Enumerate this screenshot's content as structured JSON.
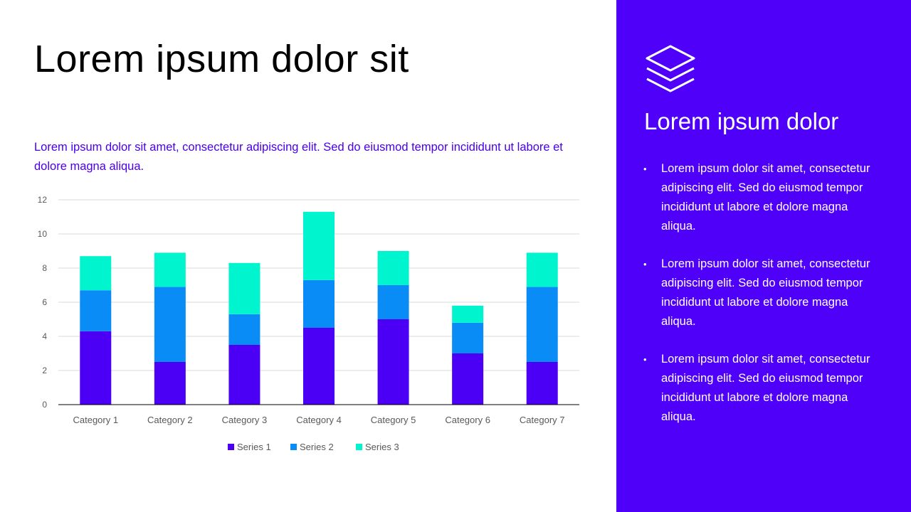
{
  "title": "Lorem ipsum dolor sit",
  "intro": "Lorem ipsum dolor sit amet, consectetur adipiscing elit. Sed do eiusmod tempor incididunt ut labore et dolore magna aliqua.",
  "panel": {
    "icon": "layers-icon",
    "heading": "Lorem ipsum dolor",
    "bullets": [
      "Lorem ipsum dolor sit amet, consectetur adipiscing elit. Sed do eiusmod tempor incididunt ut labore et dolore magna aliqua.",
      "Lorem ipsum dolor sit amet, consectetur adipiscing elit. Sed do eiusmod tempor incididunt ut labore et dolore magna aliqua.",
      "Lorem ipsum dolor sit amet, consectetur adipiscing elit. Sed do eiusmod tempor incididunt ut labore et dolore magna aliqua."
    ],
    "color": "#4f00f8"
  },
  "chart_data": {
    "type": "bar",
    "stacked": true,
    "categories": [
      "Category 1",
      "Category 2",
      "Category 3",
      "Category 4",
      "Category 5",
      "Category 6",
      "Category 7"
    ],
    "series": [
      {
        "name": "Series 1",
        "color": "#4b00f5",
        "values": [
          4.3,
          2.5,
          3.5,
          4.5,
          5,
          3,
          2.5
        ]
      },
      {
        "name": "Series 2",
        "color": "#0a8cf7",
        "values": [
          2.4,
          4.4,
          1.8,
          2.8,
          2,
          1.8,
          4.4
        ]
      },
      {
        "name": "Series 3",
        "color": "#00f5cf",
        "values": [
          2,
          2,
          3,
          4,
          2,
          1,
          2
        ]
      }
    ],
    "ylim": [
      0,
      12
    ],
    "yticks": [
      0,
      2,
      4,
      6,
      8,
      10,
      12
    ],
    "grid": true,
    "legend": "bottom"
  }
}
